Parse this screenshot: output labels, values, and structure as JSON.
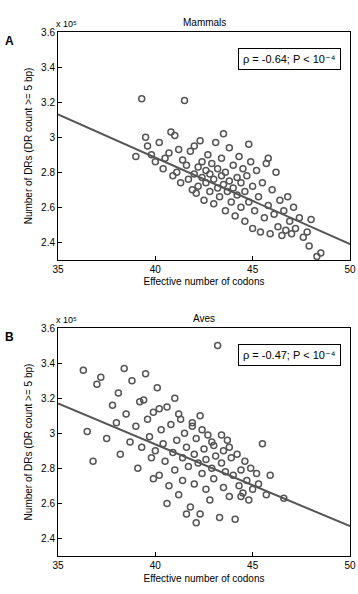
{
  "chart_data": [
    {
      "type": "scatter",
      "panel": "A",
      "title": "Mammals",
      "x_label": "Effective number of codons",
      "y_label": "Number of DRs (DR count >= 5 bp)",
      "annotations": [
        "x 10⁵",
        "ρ = -0.64; P < 10⁻⁴"
      ],
      "xlim": [
        35,
        50
      ],
      "xticks": [
        35,
        40,
        45,
        50
      ],
      "ylim": [
        2.3,
        3.6
      ],
      "yticks": [
        2.4,
        2.6,
        2.8,
        3,
        3.2,
        3.4,
        3.6
      ],
      "grid": false,
      "series": [
        {
          "type": "scatter",
          "marker": "circle-open",
          "color": "#555555",
          "x": [
            39.0,
            39.3,
            39.6,
            39.8,
            40.0,
            40.2,
            40.4,
            40.5,
            40.7,
            40.9,
            41.0,
            41.1,
            41.2,
            41.3,
            41.4,
            41.5,
            41.6,
            41.7,
            41.8,
            41.9,
            42.0,
            42.0,
            42.1,
            42.2,
            42.2,
            42.3,
            42.4,
            42.4,
            42.5,
            42.6,
            42.6,
            42.7,
            42.8,
            42.8,
            42.9,
            43.0,
            43.0,
            43.1,
            43.2,
            43.2,
            43.3,
            43.4,
            43.4,
            43.5,
            43.6,
            43.6,
            43.7,
            43.8,
            43.8,
            43.9,
            44.0,
            44.0,
            44.1,
            44.2,
            44.2,
            44.3,
            44.4,
            44.4,
            44.5,
            44.6,
            44.6,
            44.7,
            44.8,
            44.9,
            45.0,
            45.0,
            45.1,
            45.2,
            45.3,
            45.4,
            45.5,
            45.6,
            45.7,
            45.8,
            45.9,
            46.0,
            46.1,
            46.2,
            46.3,
            46.4,
            46.5,
            46.6,
            46.7,
            46.8,
            46.9,
            47.0,
            47.1,
            47.2,
            47.4,
            47.6,
            47.8,
            47.9,
            48.0,
            48.3,
            48.5,
            39.5,
            40.8,
            43.5,
            44.8,
            45.8
          ],
          "values": [
            2.89,
            3.22,
            2.95,
            2.9,
            2.86,
            2.97,
            2.82,
            2.88,
            2.91,
            2.78,
            3.01,
            2.8,
            2.93,
            2.74,
            2.87,
            3.21,
            2.84,
            2.76,
            2.92,
            2.7,
            2.79,
            2.95,
            2.68,
            2.83,
            2.72,
            2.98,
            2.77,
            2.86,
            2.64,
            2.81,
            2.74,
            2.9,
            2.69,
            2.79,
            2.85,
            2.62,
            2.76,
            2.97,
            2.71,
            2.82,
            2.66,
            2.78,
            2.88,
            2.73,
            2.58,
            2.8,
            2.69,
            2.94,
            2.75,
            2.63,
            2.71,
            2.84,
            2.55,
            2.77,
            2.67,
            2.89,
            2.6,
            2.74,
            2.82,
            2.52,
            2.69,
            2.78,
            2.63,
            2.86,
            2.48,
            2.72,
            2.58,
            2.81,
            2.66,
            2.46,
            2.74,
            2.54,
            2.85,
            2.61,
            2.45,
            2.7,
            2.56,
            2.8,
            2.49,
            2.64,
            2.44,
            2.58,
            2.47,
            2.66,
            2.52,
            2.45,
            2.6,
            2.48,
            2.54,
            2.43,
            2.46,
            2.38,
            2.53,
            2.32,
            2.34,
            3.0,
            3.03,
            3.02,
            2.96,
            2.88
          ]
        },
        {
          "type": "line",
          "line_style": "solid",
          "color": "#555555",
          "x": [
            35,
            50
          ],
          "values": [
            3.13,
            2.39
          ]
        }
      ]
    },
    {
      "type": "scatter",
      "panel": "B",
      "title": "Aves",
      "x_label": "Effective number of codons",
      "y_label": "Number of DRs (DR count >= 5 bp)",
      "annotations": [
        "x 10⁵",
        "ρ = -0.47; P < 10⁻⁴"
      ],
      "xlim": [
        35,
        50
      ],
      "xticks": [
        35,
        40,
        45,
        50
      ],
      "ylim": [
        2.3,
        3.6
      ],
      "yticks": [
        2.4,
        2.6,
        2.8,
        3,
        3.2,
        3.4,
        3.6
      ],
      "grid": false,
      "series": [
        {
          "type": "scatter",
          "marker": "circle-open",
          "color": "#555555",
          "x": [
            36.3,
            36.5,
            36.8,
            37.2,
            37.5,
            37.8,
            38.0,
            38.2,
            38.4,
            38.5,
            38.7,
            38.8,
            39.0,
            39.1,
            39.2,
            39.3,
            39.5,
            39.6,
            39.7,
            39.8,
            39.9,
            40.0,
            40.1,
            40.2,
            40.3,
            40.4,
            40.5,
            40.6,
            40.7,
            40.8,
            40.9,
            41.0,
            41.0,
            41.1,
            41.2,
            41.3,
            41.4,
            41.4,
            41.5,
            41.6,
            41.7,
            41.8,
            41.9,
            42.0,
            42.0,
            42.1,
            42.2,
            42.3,
            42.3,
            42.4,
            42.5,
            42.6,
            42.6,
            42.7,
            42.8,
            42.9,
            43.0,
            43.0,
            43.1,
            43.2,
            43.3,
            43.4,
            43.5,
            43.5,
            43.6,
            43.7,
            43.8,
            43.9,
            44.0,
            44.1,
            44.2,
            44.3,
            44.4,
            44.5,
            44.6,
            44.7,
            44.8,
            44.9,
            45.0,
            45.2,
            45.3,
            45.5,
            45.7,
            45.9,
            46.6,
            37.0,
            38.1,
            39.4,
            40.2,
            41.2,
            41.9,
            42.4,
            42.9,
            43.4,
            43.8,
            44.4,
            42.1,
            41.6,
            40.6,
            39.9
          ],
          "values": [
            3.36,
            3.01,
            2.84,
            3.32,
            2.97,
            3.16,
            3.06,
            2.88,
            3.37,
            3.11,
            2.95,
            3.3,
            3.04,
            2.8,
            3.18,
            2.92,
            3.34,
            3.08,
            2.98,
            2.86,
            3.12,
            2.9,
            3.26,
            2.76,
            3.02,
            2.94,
            2.84,
            3.15,
            2.7,
            3.05,
            2.89,
            3.2,
            2.79,
            2.96,
            2.65,
            3.08,
            2.86,
            2.73,
            3.0,
            2.92,
            2.81,
            2.58,
            3.04,
            2.88,
            2.71,
            2.97,
            2.83,
            2.54,
            3.1,
            2.77,
            2.91,
            2.68,
            2.85,
            2.99,
            2.62,
            2.8,
            2.74,
            2.93,
            2.87,
            3.5,
            2.52,
            2.83,
            2.9,
            2.69,
            2.78,
            2.96,
            2.64,
            2.86,
            2.76,
            2.51,
            2.88,
            2.7,
            2.79,
            2.66,
            2.84,
            2.73,
            2.62,
            2.8,
            2.68,
            2.77,
            2.71,
            2.94,
            2.65,
            2.76,
            2.63,
            3.28,
            3.23,
            3.19,
            3.14,
            3.11,
            3.06,
            3.02,
            2.95,
            2.99,
            2.92,
            2.64,
            2.49,
            2.54,
            2.6,
            2.74
          ]
        },
        {
          "type": "line",
          "line_style": "solid",
          "color": "#555555",
          "x": [
            35,
            50
          ],
          "values": [
            3.17,
            2.47
          ]
        }
      ]
    }
  ]
}
